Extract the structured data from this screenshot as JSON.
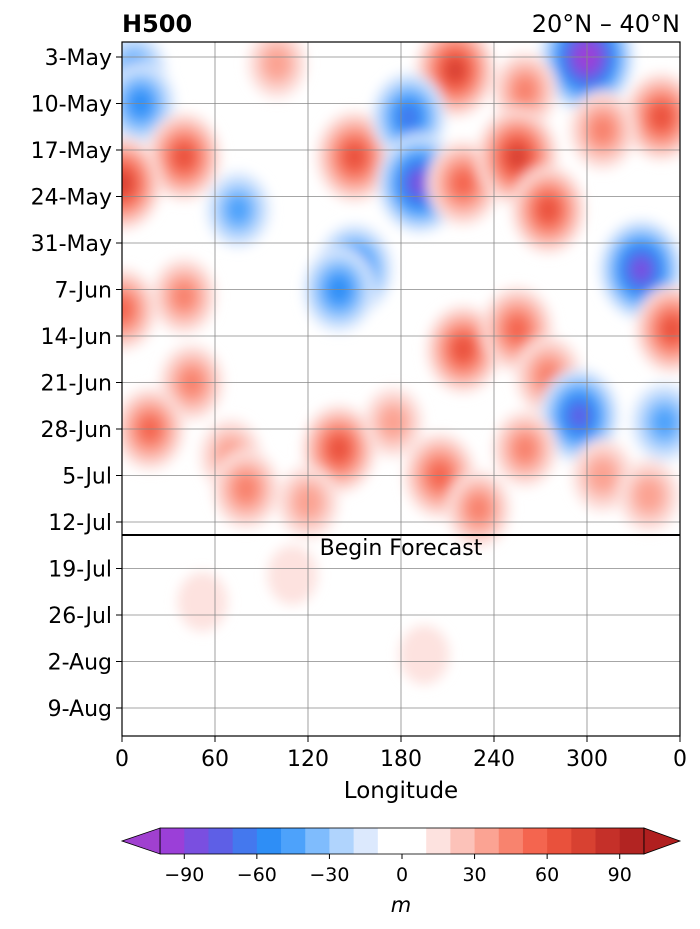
{
  "chart_data": {
    "type": "heatmap",
    "title_left": "H500",
    "title_right": "20°N – 40°N",
    "xlabel": "Longitude",
    "ylabel": "",
    "x_ticks": [
      "0",
      "60",
      "120",
      "180",
      "240",
      "300",
      "0"
    ],
    "x_tick_values": [
      0,
      60,
      120,
      180,
      240,
      300,
      360
    ],
    "xlim": [
      0,
      360
    ],
    "y_ticks": [
      "3-May",
      "10-May",
      "17-May",
      "24-May",
      "31-May",
      "7-Jun",
      "14-Jun",
      "21-Jun",
      "28-Jun",
      "5-Jul",
      "12-Jul",
      "19-Jul",
      "26-Jul",
      "2-Aug",
      "9-Aug"
    ],
    "y_reversed": true,
    "grid": true,
    "forecast_label": "Begin Forecast",
    "forecast_start": "14-Jul",
    "colorbar": {
      "label": "m",
      "ticks": [
        "−90",
        "−60",
        "−30",
        "0",
        "30",
        "60",
        "90"
      ],
      "tick_values": [
        -90,
        -60,
        -30,
        0,
        30,
        60,
        90
      ],
      "range": [
        -105,
        105
      ],
      "level_step": 10,
      "extend": "both",
      "colors_negative": [
        "#9b3fd8",
        "#7a4fe0",
        "#5e5fe6",
        "#4478ee",
        "#2e8ef6",
        "#4da2fb",
        "#7fbcfd",
        "#b0d4fd",
        "#dce9fd"
      ],
      "colors_positive": [
        "#fde2df",
        "#fcc2b9",
        "#fba393",
        "#f8836e",
        "#f4654f",
        "#e9513c",
        "#d84131",
        "#c53029",
        "#b22422"
      ]
    },
    "anomaly_features": [
      {
        "lon": 300,
        "date": "3-May",
        "value": -100
      },
      {
        "lon": 8,
        "date": "5-May",
        "value": -40
      },
      {
        "lon": 100,
        "date": "4-May",
        "value": 30
      },
      {
        "lon": 215,
        "date": "5-May",
        "value": 70
      },
      {
        "lon": 260,
        "date": "8-May",
        "value": 40
      },
      {
        "lon": 348,
        "date": "12-May",
        "value": 60
      },
      {
        "lon": 12,
        "date": "10-May",
        "value": -50
      },
      {
        "lon": 40,
        "date": "18-May",
        "value": 60
      },
      {
        "lon": 150,
        "date": "18-May",
        "value": 65
      },
      {
        "lon": 185,
        "date": "12-May",
        "value": -60
      },
      {
        "lon": 192,
        "date": "22-May",
        "value": -80
      },
      {
        "lon": 220,
        "date": "22-May",
        "value": 55
      },
      {
        "lon": 255,
        "date": "18-May",
        "value": 75
      },
      {
        "lon": 275,
        "date": "26-May",
        "value": 60
      },
      {
        "lon": 310,
        "date": "14-May",
        "value": 45
      },
      {
        "lon": 0,
        "date": "22-May",
        "value": 70
      },
      {
        "lon": 75,
        "date": "26-May",
        "value": -40
      },
      {
        "lon": 150,
        "date": "4-Jun",
        "value": -65
      },
      {
        "lon": 140,
        "date": "7-Jun",
        "value": -55
      },
      {
        "lon": 335,
        "date": "4-Jun",
        "value": -80
      },
      {
        "lon": 0,
        "date": "10-Jun",
        "value": 50
      },
      {
        "lon": 40,
        "date": "8-Jun",
        "value": 40
      },
      {
        "lon": 355,
        "date": "13-Jun",
        "value": 60
      },
      {
        "lon": 220,
        "date": "16-Jun",
        "value": 60
      },
      {
        "lon": 255,
        "date": "13-Jun",
        "value": 55
      },
      {
        "lon": 275,
        "date": "20-Jun",
        "value": 45
      },
      {
        "lon": 295,
        "date": "26-Jun",
        "value": -70
      },
      {
        "lon": 350,
        "date": "27-Jun",
        "value": -45
      },
      {
        "lon": 45,
        "date": "21-Jun",
        "value": 40
      },
      {
        "lon": 18,
        "date": "28-Jun",
        "value": 50
      },
      {
        "lon": 70,
        "date": "2-Jul",
        "value": 35
      },
      {
        "lon": 140,
        "date": "1-Jul",
        "value": 60
      },
      {
        "lon": 175,
        "date": "27-Jun",
        "value": 30
      },
      {
        "lon": 205,
        "date": "5-Jul",
        "value": 55
      },
      {
        "lon": 260,
        "date": "1-Jul",
        "value": 40
      },
      {
        "lon": 310,
        "date": "5-Jul",
        "value": 35
      },
      {
        "lon": 80,
        "date": "7-Jul",
        "value": 45
      },
      {
        "lon": 120,
        "date": "9-Jul",
        "value": 35
      },
      {
        "lon": 230,
        "date": "10-Jul",
        "value": 40
      },
      {
        "lon": 340,
        "date": "8-Jul",
        "value": 35
      },
      {
        "lon": 195,
        "date": "1-Aug",
        "value": 12
      },
      {
        "lon": 110,
        "date": "20-Jul",
        "value": 12
      },
      {
        "lon": 52,
        "date": "24-Jul",
        "value": 12
      }
    ]
  }
}
